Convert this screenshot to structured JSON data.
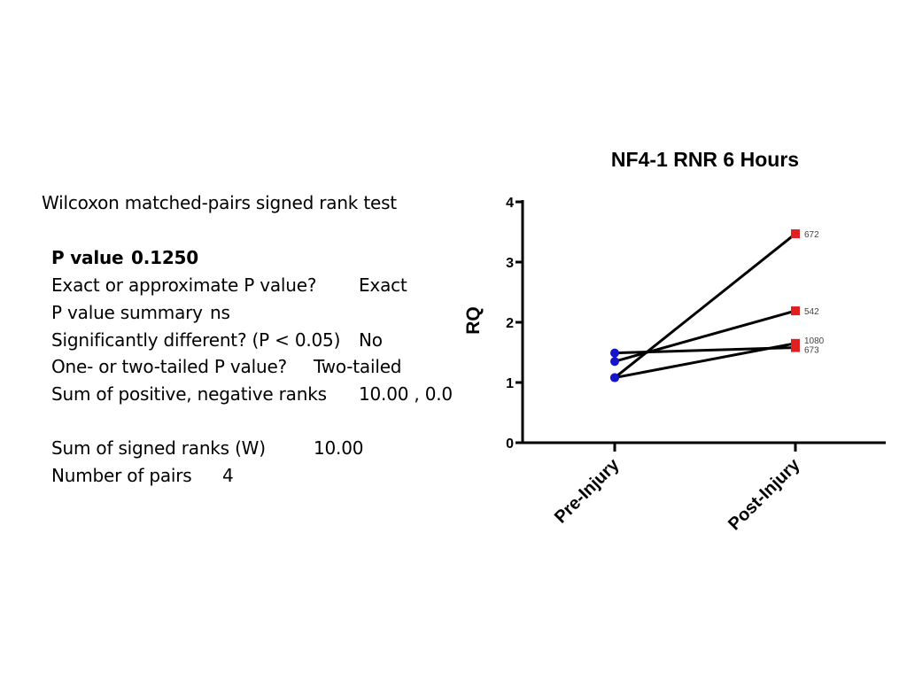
{
  "stats": {
    "test_name": "Wilcoxon matched-pairs signed rank test",
    "p_value_label": "P value",
    "p_value": "0.1250",
    "exact_label": "Exact or approximate P value?",
    "exact_value": "Exact",
    "summary_label": "P value summary",
    "summary_value": "ns",
    "signif_label": "Significantly different? (P < 0.05)",
    "signif_value": "No",
    "tail_label": "One- or two-tailed P value?",
    "tail_value": "Two-tailed",
    "ranks_label": "Sum of positive, negative ranks",
    "ranks_value": "10.00 , 0.0",
    "w_label": "Sum of signed ranks (W)",
    "w_value": "10.00",
    "pairs_label": "Number of pairs",
    "pairs_value": "4"
  },
  "chart_data": {
    "type": "line",
    "title": "NF4-1 RNR 6 Hours",
    "xlabel": "",
    "ylabel": "RQ",
    "categories": [
      "Pre-Injury",
      "Post-Injury"
    ],
    "ylim": [
      0,
      4
    ],
    "yticks": [
      "0",
      "1",
      "2",
      "3",
      "4"
    ],
    "grid": false,
    "series": [
      {
        "name": "672",
        "values": [
          1.08,
          3.47
        ]
      },
      {
        "name": "542",
        "values": [
          1.35,
          2.19
        ]
      },
      {
        "name": "1080",
        "values": [
          1.08,
          1.65
        ]
      },
      {
        "name": "673",
        "values": [
          1.49,
          1.58
        ]
      }
    ],
    "colors": {
      "pre_marker": "#1414c8",
      "post_marker": "#e02020",
      "line": "#000000"
    }
  }
}
